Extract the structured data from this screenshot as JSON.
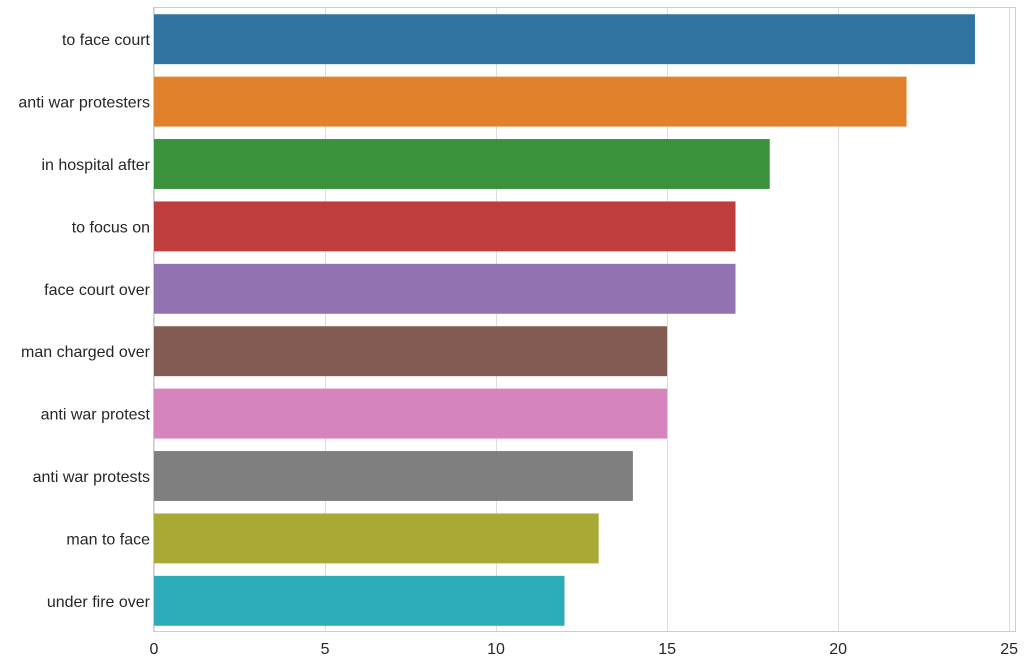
{
  "chart_data": {
    "type": "bar",
    "orientation": "horizontal",
    "title": "",
    "xlabel": "",
    "ylabel": "",
    "categories": [
      "to face court",
      "anti war protesters",
      "in hospital after",
      "to focus on",
      "face court over",
      "man charged over",
      "anti war protest",
      "anti war protests",
      "man to face",
      "under fire over"
    ],
    "values": [
      24,
      22,
      18,
      17,
      17,
      15,
      15,
      14,
      13,
      12
    ],
    "colors": [
      "#3274a1",
      "#e1812c",
      "#3a923a",
      "#c03d3e",
      "#9372b2",
      "#845b53",
      "#d684bd",
      "#7f7f7f",
      "#a9aa35",
      "#2eabb8"
    ],
    "xlim": [
      0,
      25.2
    ],
    "xticks": [
      0,
      5,
      10,
      15,
      20,
      25
    ],
    "grid": true,
    "legend": "none"
  }
}
